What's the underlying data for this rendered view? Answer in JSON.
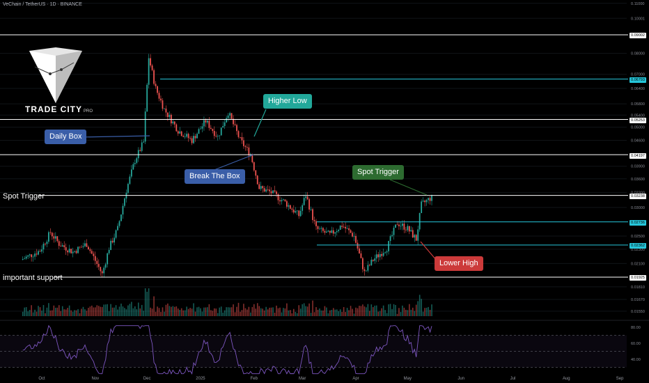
{
  "header": {
    "symbol_line": "VeChain / TetherUS · 1D · BINANCE"
  },
  "logo": {
    "brand": "TRADE CITY",
    "suffix": "PRO"
  },
  "annotations": {
    "daily_box": "Daily Box",
    "higher_low": "Higher Low",
    "break_the_box": "Break The Box",
    "spot_trigger_box": "Spot Trigger",
    "lower_high": "Lower High",
    "spot_trigger_line": "Spot Trigger",
    "important_support": "important support"
  },
  "price_tags": {
    "p1": "0.09002",
    "p2": "0.06793",
    "p3": "0.05253",
    "p4": "0.04197",
    "p5": "0.03238",
    "p6": "0.02736",
    "p7": "0.02362",
    "p8": "0.01925"
  },
  "colors": {
    "bull": "#26a69a",
    "bear": "#ef5350",
    "level_white": "#ffffff",
    "level_teal": "#26c6da",
    "rsi_line": "#7e57c2"
  },
  "chart_data": {
    "type": "candlestick",
    "price_axis": {
      "scale": "log",
      "ticks": [
        "0.11000",
        "0.10001",
        "0.08000",
        "0.07000",
        "0.06400",
        "0.05800",
        "0.05400",
        "0.05000",
        "0.04600",
        "0.03900",
        "0.03600",
        "0.03300",
        "0.03000",
        "0.02500",
        "0.02300",
        "0.02100",
        "0.01810",
        "0.01670",
        "0.01550"
      ]
    },
    "time_axis": {
      "ticks": [
        "Oct",
        "Nov",
        "Dec",
        "2025",
        "Feb",
        "Mar",
        "Apr",
        "May",
        "Jun",
        "Jul",
        "Aug",
        "Sep"
      ]
    },
    "levels": [
      {
        "price": 0.09002,
        "color": "white"
      },
      {
        "price": 0.06793,
        "color": "teal"
      },
      {
        "price": 0.05253,
        "color": "white"
      },
      {
        "price": 0.04197,
        "color": "white"
      },
      {
        "price": 0.03238,
        "color": "white"
      },
      {
        "price": 0.02736,
        "color": "teal"
      },
      {
        "price": 0.02362,
        "color": "teal"
      },
      {
        "price": 0.01925,
        "color": "white"
      }
    ],
    "path_points": [
      [
        "2024-09-20",
        0.0215
      ],
      [
        "2024-10-01",
        0.0228
      ],
      [
        "2024-10-07",
        0.0256
      ],
      [
        "2024-10-12",
        0.0238
      ],
      [
        "2024-10-20",
        0.0226
      ],
      [
        "2024-10-28",
        0.0238
      ],
      [
        "2024-11-04",
        0.0205
      ],
      [
        "2024-11-06",
        0.0196
      ],
      [
        "2024-11-10",
        0.0232
      ],
      [
        "2024-11-15",
        0.0262
      ],
      [
        "2024-11-20",
        0.0335
      ],
      [
        "2024-11-25",
        0.0405
      ],
      [
        "2024-11-30",
        0.0455
      ],
      [
        "2024-12-03",
        0.078
      ],
      [
        "2024-12-07",
        0.064
      ],
      [
        "2024-12-12",
        0.056
      ],
      [
        "2024-12-20",
        0.049
      ],
      [
        "2024-12-28",
        0.046
      ],
      [
        "2025-01-05",
        0.052
      ],
      [
        "2025-01-12",
        0.047
      ],
      [
        "2025-01-18",
        0.055
      ],
      [
        "2025-01-25",
        0.046
      ],
      [
        "2025-01-31",
        0.042
      ],
      [
        "2025-02-05",
        0.034
      ],
      [
        "2025-02-12",
        0.033
      ],
      [
        "2025-02-20",
        0.031
      ],
      [
        "2025-02-28",
        0.0285
      ],
      [
        "2025-03-04",
        0.0325
      ],
      [
        "2025-03-10",
        0.0262
      ],
      [
        "2025-03-18",
        0.0252
      ],
      [
        "2025-03-25",
        0.0268
      ],
      [
        "2025-04-01",
        0.025
      ],
      [
        "2025-04-07",
        0.0198
      ],
      [
        "2025-04-12",
        0.0215
      ],
      [
        "2025-04-20",
        0.0232
      ],
      [
        "2025-04-26",
        0.0272
      ],
      [
        "2025-05-02",
        0.0262
      ],
      [
        "2025-05-07",
        0.0245
      ],
      [
        "2025-05-10",
        0.0305
      ],
      [
        "2025-05-15",
        0.0318
      ]
    ],
    "rsi": {
      "levels": [
        70,
        50,
        30
      ],
      "ticks": [
        "80.00",
        "60.00",
        "40.00"
      ]
    }
  }
}
